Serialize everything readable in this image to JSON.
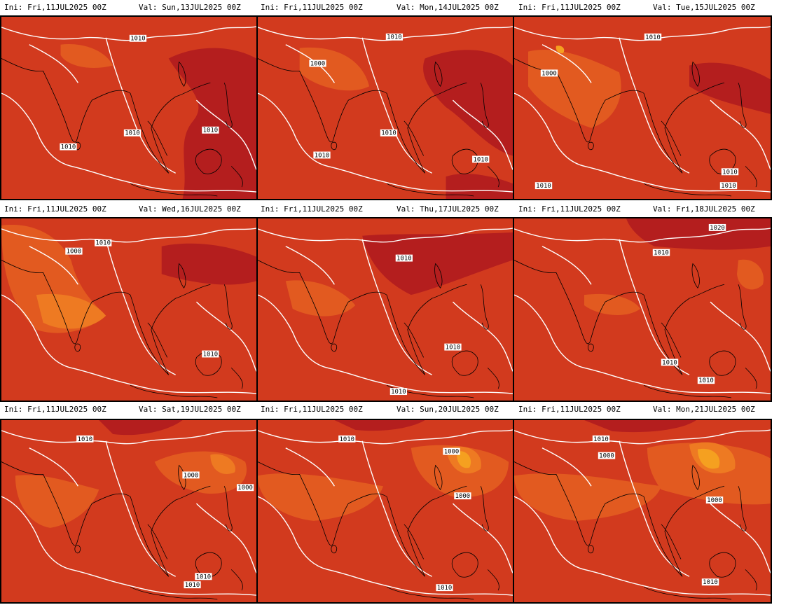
{
  "colors": {
    "dark": "#b41e1e",
    "mid": "#d23a1e",
    "light": "#e25a20",
    "lighter": "#ee7a22",
    "orange": "#f5a020",
    "contour": "#ffffff",
    "coast": "#000000"
  },
  "panels": [
    {
      "ini": "Ini: Fri,11JUL2025 00Z",
      "val": "Val: Sun,13JUL2025 00Z",
      "labels": [
        "1010",
        "1010",
        "1010",
        "1010"
      ]
    },
    {
      "ini": "Ini: Fri,11JUL2025 00Z",
      "val": "Val: Mon,14JUL2025 00Z",
      "labels": [
        "1010",
        "1000",
        "1010",
        "1010",
        "1010"
      ]
    },
    {
      "ini": "Ini: Fri,11JUL2025 00Z",
      "val": "Val: Tue,15JUL2025 00Z",
      "labels": [
        "1010",
        "1000",
        "1010",
        "1010",
        "1010"
      ]
    },
    {
      "ini": "Ini: Fri,11JUL2025 00Z",
      "val": "Val: Wed,16JUL2025 00Z",
      "labels": [
        "1010",
        "1000",
        "1010"
      ]
    },
    {
      "ini": "Ini: Fri,11JUL2025 00Z",
      "val": "Val: Thu,17JUL2025 00Z",
      "labels": [
        "1010",
        "1010",
        "1010"
      ]
    },
    {
      "ini": "Ini: Fri,11JUL2025 00Z",
      "val": "Val: Fri,18JUL2025 00Z",
      "labels": [
        "1020",
        "1010",
        "1010",
        "1010"
      ]
    },
    {
      "ini": "Ini: Fri,11JUL2025 00Z",
      "val": "Val: Sat,19JUL2025 00Z",
      "labels": [
        "1010",
        "1000",
        "1000",
        "1010",
        "1010"
      ]
    },
    {
      "ini": "Ini: Fri,11JUL2025 00Z",
      "val": "Val: Sun,20JUL2025 00Z",
      "labels": [
        "1010",
        "1000",
        "1000",
        "1010"
      ]
    },
    {
      "ini": "Ini: Fri,11JUL2025 00Z",
      "val": "Val: Mon,21JUL2025 00Z",
      "labels": [
        "1010",
        "1000",
        "1000",
        "1010"
      ]
    }
  ]
}
